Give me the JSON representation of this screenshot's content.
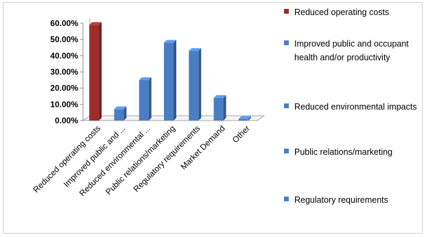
{
  "chart_data": {
    "type": "bar",
    "categories": [
      "Reduced operating costs",
      "Improved public and ...",
      "Reduced environmental ...",
      "Public relations/marketing",
      "Regulatory requirements",
      "Market Demand",
      "Other"
    ],
    "values": [
      59,
      7,
      25,
      48,
      43,
      14,
      1
    ],
    "value_unit": "percent",
    "y_ticks": [
      "0.00%",
      "10.00%",
      "20.00%",
      "30.00%",
      "40.00%",
      "50.00%",
      "60.00%"
    ],
    "ylim": [
      0,
      60
    ],
    "grid": false,
    "bar_colors": [
      "#9b2d2d",
      "#4a7ec2",
      "#4a7ec2",
      "#4a7ec2",
      "#4a7ec2",
      "#4a7ec2",
      "#4a7ec2"
    ],
    "legend_position": "right",
    "legend": [
      {
        "label": "Reduced operating costs",
        "color": "#9b2d2d"
      },
      {
        "label": "Improved public and occupant health and/or productivity",
        "color": "#4a7ec2"
      },
      {
        "label": "Reduced environmental impacts",
        "color": "#4a7ec2"
      },
      {
        "label": "Public relations/marketing",
        "color": "#4a7ec2"
      },
      {
        "label": "Regulatory requirements",
        "color": "#4a7ec2"
      }
    ]
  }
}
